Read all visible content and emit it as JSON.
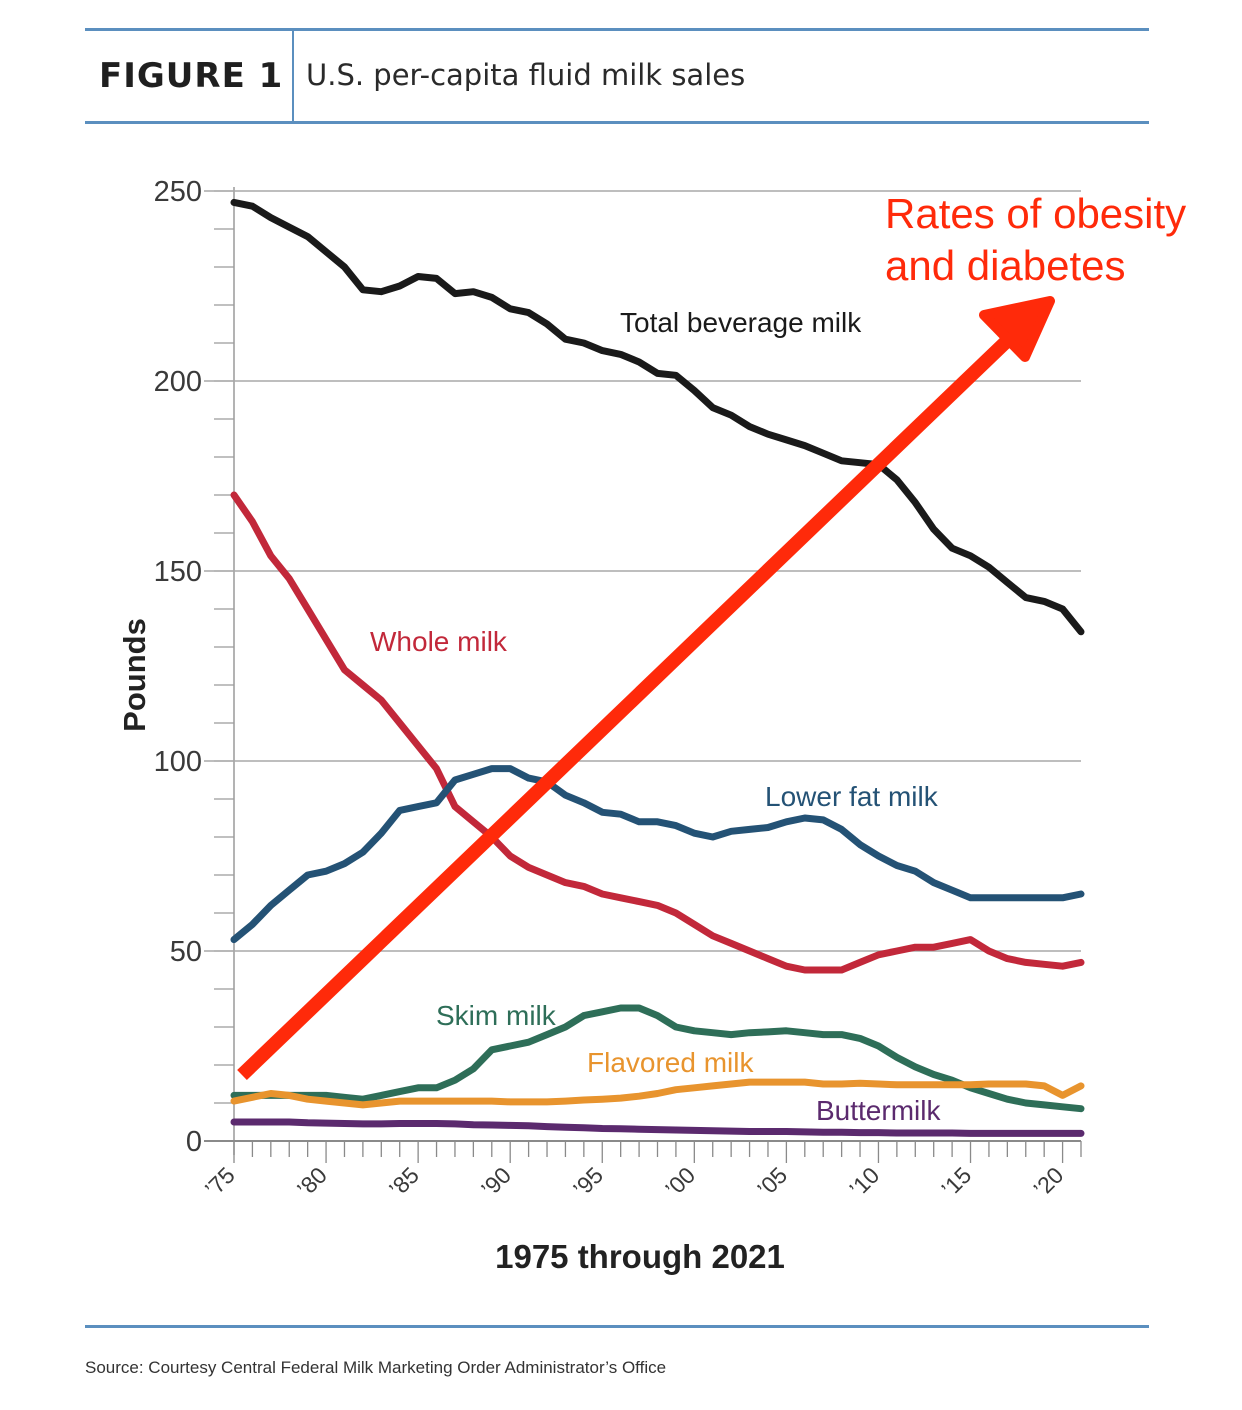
{
  "figure": {
    "label": "FIGURE 1",
    "title": "U.S. per-capita fluid milk sales",
    "source": "Source: Courtesy Central Federal Milk Marketing Order Administrator’s Office"
  },
  "chart_data": {
    "type": "line",
    "title": "U.S. per-capita fluid milk sales",
    "xlabel": "1975 through 2021",
    "ylabel": "Pounds",
    "xlim": [
      1975,
      2021
    ],
    "ylim": [
      0,
      250
    ],
    "yticks": [
      0,
      50,
      100,
      150,
      200,
      250
    ],
    "xtick_labels": [
      {
        "year": 1975,
        "label": "’75"
      },
      {
        "year": 1980,
        "label": "’80"
      },
      {
        "year": 1985,
        "label": "’85"
      },
      {
        "year": 1990,
        "label": "’90"
      },
      {
        "year": 1995,
        "label": "’95"
      },
      {
        "year": 2000,
        "label": "’00"
      },
      {
        "year": 2005,
        "label": "’05"
      },
      {
        "year": 2010,
        "label": "’10"
      },
      {
        "year": 2015,
        "label": "’15"
      },
      {
        "year": 2020,
        "label": "’20"
      }
    ],
    "grid": true,
    "series": [
      {
        "name": "Total beverage milk",
        "color": "#1a1a1a",
        "points": [
          [
            1975,
            247
          ],
          [
            1976,
            246
          ],
          [
            1977,
            243
          ],
          [
            1978,
            240.5
          ],
          [
            1979,
            238
          ],
          [
            1980,
            234
          ],
          [
            1981,
            230
          ],
          [
            1982,
            224
          ],
          [
            1983,
            223.5
          ],
          [
            1984,
            225
          ],
          [
            1985,
            227.5
          ],
          [
            1986,
            227
          ],
          [
            1987,
            223
          ],
          [
            1988,
            223.5
          ],
          [
            1989,
            222
          ],
          [
            1990,
            219
          ],
          [
            1991,
            218
          ],
          [
            1992,
            215
          ],
          [
            1993,
            211
          ],
          [
            1994,
            210
          ],
          [
            1995,
            208
          ],
          [
            1996,
            207
          ],
          [
            1997,
            205
          ],
          [
            1998,
            202
          ],
          [
            1999,
            201.5
          ],
          [
            2000,
            197.5
          ],
          [
            2001,
            193
          ],
          [
            2002,
            191
          ],
          [
            2003,
            188
          ],
          [
            2004,
            186
          ],
          [
            2005,
            184.5
          ],
          [
            2006,
            183
          ],
          [
            2007,
            181
          ],
          [
            2008,
            179
          ],
          [
            2009,
            178.5
          ],
          [
            2010,
            178
          ],
          [
            2011,
            174
          ],
          [
            2012,
            168
          ],
          [
            2013,
            161
          ],
          [
            2014,
            156
          ],
          [
            2015,
            154
          ],
          [
            2016,
            151
          ],
          [
            2017,
            147
          ],
          [
            2018,
            143
          ],
          [
            2019,
            142
          ],
          [
            2020,
            140
          ],
          [
            2021,
            134
          ]
        ]
      },
      {
        "name": "Whole milk",
        "color": "#c2283a",
        "points": [
          [
            1975,
            170
          ],
          [
            1976,
            163
          ],
          [
            1977,
            154
          ],
          [
            1978,
            148
          ],
          [
            1979,
            140
          ],
          [
            1980,
            132
          ],
          [
            1981,
            124
          ],
          [
            1982,
            120
          ],
          [
            1983,
            116
          ],
          [
            1984,
            110
          ],
          [
            1985,
            104
          ],
          [
            1986,
            98
          ],
          [
            1987,
            88
          ],
          [
            1988,
            84
          ],
          [
            1989,
            80
          ],
          [
            1990,
            75
          ],
          [
            1991,
            72
          ],
          [
            1992,
            70
          ],
          [
            1993,
            68
          ],
          [
            1994,
            67
          ],
          [
            1995,
            65
          ],
          [
            1996,
            64
          ],
          [
            1997,
            63
          ],
          [
            1998,
            62
          ],
          [
            1999,
            60
          ],
          [
            2000,
            57
          ],
          [
            2001,
            54
          ],
          [
            2002,
            52
          ],
          [
            2003,
            50
          ],
          [
            2004,
            48
          ],
          [
            2005,
            46
          ],
          [
            2006,
            45
          ],
          [
            2007,
            45
          ],
          [
            2008,
            45
          ],
          [
            2009,
            47
          ],
          [
            2010,
            49
          ],
          [
            2011,
            50
          ],
          [
            2012,
            51
          ],
          [
            2013,
            51
          ],
          [
            2014,
            52
          ],
          [
            2015,
            53
          ],
          [
            2016,
            50
          ],
          [
            2017,
            48
          ],
          [
            2018,
            47
          ],
          [
            2019,
            46.5
          ],
          [
            2020,
            46
          ],
          [
            2021,
            47
          ]
        ]
      },
      {
        "name": "Lower fat milk",
        "color": "#245275",
        "points": [
          [
            1975,
            53
          ],
          [
            1976,
            57
          ],
          [
            1977,
            62
          ],
          [
            1978,
            66
          ],
          [
            1979,
            70
          ],
          [
            1980,
            71
          ],
          [
            1981,
            73
          ],
          [
            1982,
            76
          ],
          [
            1983,
            81
          ],
          [
            1984,
            87
          ],
          [
            1985,
            88
          ],
          [
            1986,
            89
          ],
          [
            1987,
            95
          ],
          [
            1988,
            96.5
          ],
          [
            1989,
            98
          ],
          [
            1990,
            98
          ],
          [
            1991,
            95.5
          ],
          [
            1992,
            94.5
          ],
          [
            1993,
            91
          ],
          [
            1994,
            89
          ],
          [
            1995,
            86.5
          ],
          [
            1996,
            86
          ],
          [
            1997,
            84
          ],
          [
            1998,
            84
          ],
          [
            1999,
            83
          ],
          [
            2000,
            81
          ],
          [
            2001,
            80
          ],
          [
            2002,
            81.5
          ],
          [
            2003,
            82
          ],
          [
            2004,
            82.5
          ],
          [
            2005,
            84
          ],
          [
            2006,
            85
          ],
          [
            2007,
            84.5
          ],
          [
            2008,
            82
          ],
          [
            2009,
            78
          ],
          [
            2010,
            75
          ],
          [
            2011,
            72.5
          ],
          [
            2012,
            71
          ],
          [
            2013,
            68
          ],
          [
            2014,
            66
          ],
          [
            2015,
            64
          ],
          [
            2016,
            64
          ],
          [
            2017,
            64
          ],
          [
            2018,
            64
          ],
          [
            2019,
            64
          ],
          [
            2020,
            64
          ],
          [
            2021,
            65
          ]
        ]
      },
      {
        "name": "Skim milk",
        "color": "#2e6e58",
        "points": [
          [
            1975,
            12
          ],
          [
            1976,
            12
          ],
          [
            1977,
            12
          ],
          [
            1978,
            12
          ],
          [
            1979,
            12
          ],
          [
            1980,
            12
          ],
          [
            1981,
            11.5
          ],
          [
            1982,
            11
          ],
          [
            1983,
            12
          ],
          [
            1984,
            13
          ],
          [
            1985,
            14
          ],
          [
            1986,
            14
          ],
          [
            1987,
            16
          ],
          [
            1988,
            19
          ],
          [
            1989,
            24
          ],
          [
            1990,
            25
          ],
          [
            1991,
            26
          ],
          [
            1992,
            28
          ],
          [
            1993,
            30
          ],
          [
            1994,
            33
          ],
          [
            1995,
            34
          ],
          [
            1996,
            35
          ],
          [
            1997,
            35
          ],
          [
            1998,
            33
          ],
          [
            1999,
            30
          ],
          [
            2000,
            29
          ],
          [
            2001,
            28.5
          ],
          [
            2002,
            28
          ],
          [
            2003,
            28.5
          ],
          [
            2004,
            28.7
          ],
          [
            2005,
            29
          ],
          [
            2006,
            28.5
          ],
          [
            2007,
            28
          ],
          [
            2008,
            28
          ],
          [
            2009,
            27
          ],
          [
            2010,
            25
          ],
          [
            2011,
            22
          ],
          [
            2012,
            19.5
          ],
          [
            2013,
            17.5
          ],
          [
            2014,
            16
          ],
          [
            2015,
            14
          ],
          [
            2016,
            12.5
          ],
          [
            2017,
            11
          ],
          [
            2018,
            10
          ],
          [
            2019,
            9.5
          ],
          [
            2020,
            9
          ],
          [
            2021,
            8.5
          ]
        ]
      },
      {
        "name": "Flavored milk",
        "color": "#e8942e",
        "points": [
          [
            1975,
            10.5
          ],
          [
            1976,
            11.5
          ],
          [
            1977,
            12.5
          ],
          [
            1978,
            12
          ],
          [
            1979,
            11
          ],
          [
            1980,
            10.5
          ],
          [
            1981,
            10
          ],
          [
            1982,
            9.5
          ],
          [
            1983,
            10
          ],
          [
            1984,
            10.5
          ],
          [
            1985,
            10.5
          ],
          [
            1986,
            10.5
          ],
          [
            1987,
            10.5
          ],
          [
            1988,
            10.5
          ],
          [
            1989,
            10.5
          ],
          [
            1990,
            10.3
          ],
          [
            1991,
            10.3
          ],
          [
            1992,
            10.3
          ],
          [
            1993,
            10.5
          ],
          [
            1994,
            10.8
          ],
          [
            1995,
            11
          ],
          [
            1996,
            11.3
          ],
          [
            1997,
            11.8
          ],
          [
            1998,
            12.5
          ],
          [
            1999,
            13.5
          ],
          [
            2000,
            14
          ],
          [
            2001,
            14.5
          ],
          [
            2002,
            15
          ],
          [
            2003,
            15.5
          ],
          [
            2004,
            15.5
          ],
          [
            2005,
            15.5
          ],
          [
            2006,
            15.5
          ],
          [
            2007,
            15
          ],
          [
            2008,
            15
          ],
          [
            2009,
            15.2
          ],
          [
            2010,
            15
          ],
          [
            2011,
            14.8
          ],
          [
            2012,
            14.8
          ],
          [
            2013,
            14.8
          ],
          [
            2014,
            14.8
          ],
          [
            2015,
            14.8
          ],
          [
            2016,
            15
          ],
          [
            2017,
            15
          ],
          [
            2018,
            15
          ],
          [
            2019,
            14.5
          ],
          [
            2020,
            12
          ],
          [
            2021,
            14.5
          ]
        ]
      },
      {
        "name": "Buttermilk",
        "color": "#5b2a6e",
        "points": [
          [
            1975,
            5
          ],
          [
            1976,
            5
          ],
          [
            1977,
            5
          ],
          [
            1978,
            5
          ],
          [
            1979,
            4.8
          ],
          [
            1980,
            4.7
          ],
          [
            1981,
            4.6
          ],
          [
            1982,
            4.5
          ],
          [
            1983,
            4.5
          ],
          [
            1984,
            4.6
          ],
          [
            1985,
            4.6
          ],
          [
            1986,
            4.6
          ],
          [
            1987,
            4.5
          ],
          [
            1988,
            4.3
          ],
          [
            1989,
            4.2
          ],
          [
            1990,
            4.1
          ],
          [
            1991,
            4
          ],
          [
            1992,
            3.8
          ],
          [
            1993,
            3.6
          ],
          [
            1994,
            3.5
          ],
          [
            1995,
            3.3
          ],
          [
            1996,
            3.2
          ],
          [
            1997,
            3.1
          ],
          [
            1998,
            3
          ],
          [
            1999,
            2.9
          ],
          [
            2000,
            2.8
          ],
          [
            2001,
            2.7
          ],
          [
            2002,
            2.6
          ],
          [
            2003,
            2.5
          ],
          [
            2004,
            2.5
          ],
          [
            2005,
            2.5
          ],
          [
            2006,
            2.4
          ],
          [
            2007,
            2.3
          ],
          [
            2008,
            2.3
          ],
          [
            2009,
            2.2
          ],
          [
            2010,
            2.2
          ],
          [
            2011,
            2.1
          ],
          [
            2012,
            2.1
          ],
          [
            2013,
            2.1
          ],
          [
            2014,
            2.1
          ],
          [
            2015,
            2
          ],
          [
            2016,
            2
          ],
          [
            2017,
            2
          ],
          [
            2018,
            2
          ],
          [
            2019,
            2
          ],
          [
            2020,
            2
          ],
          [
            2021,
            2
          ]
        ]
      }
    ],
    "annotations": {
      "overlay_text": [
        "Rates of obesity",
        "and diabetes"
      ],
      "overlay_color": "#ff2a0a",
      "overlay_arrow": "diagonal arrow pointing up-right"
    }
  }
}
